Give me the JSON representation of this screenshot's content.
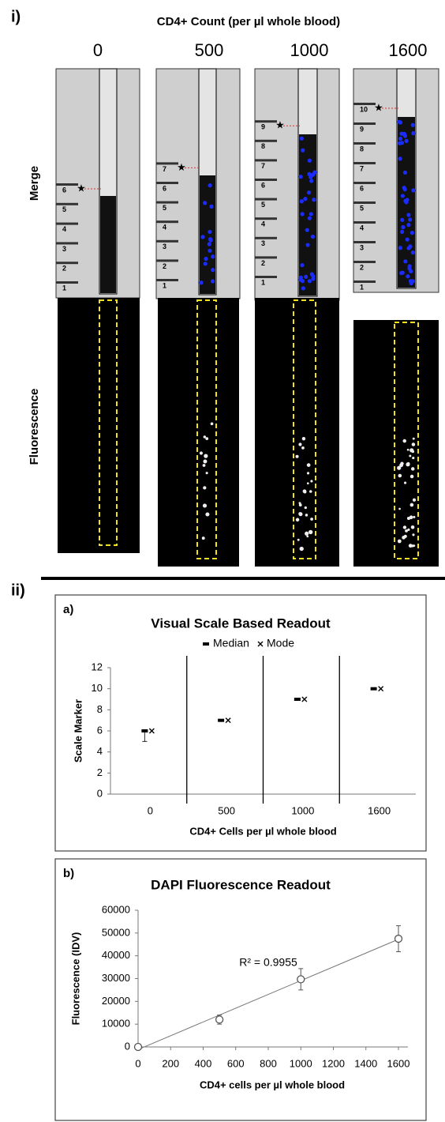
{
  "figure": {
    "panel_label": "i)",
    "title": "CD4+ Count (per µl whole blood)",
    "columns": [
      "0",
      "500",
      "1000",
      "1600"
    ],
    "rows": [
      "Merge",
      "Fluorescence"
    ],
    "scale_labels": [
      [
        "1",
        "2",
        "3",
        "4",
        "5",
        "6"
      ],
      [
        "1",
        "2",
        "3",
        "4",
        "5",
        "6",
        "7"
      ],
      [
        "1",
        "2",
        "3",
        "4",
        "5",
        "6",
        "7",
        "8",
        "9"
      ],
      [
        "1",
        "2",
        "3",
        "4",
        "5",
        "6",
        "7",
        "8",
        "9",
        "10"
      ]
    ]
  },
  "section_label": "ii)",
  "chart_data": [
    {
      "type": "dot",
      "panel_label": "a)",
      "title": "Visual Scale Based Readout",
      "categories": [
        "0",
        "500",
        "1000",
        "1600"
      ],
      "series": [
        {
          "name": "Median",
          "color": "#000000",
          "values": [
            6,
            7,
            9,
            10
          ],
          "error_minus": [
            1,
            0,
            0,
            0
          ]
        },
        {
          "name": "Mode",
          "color": "#000000",
          "values": [
            6,
            7,
            9,
            10
          ]
        }
      ],
      "ylabel": "Scale Marker",
      "xlabel": "CD4+ Cells per µl whole blood",
      "ylim": [
        0,
        12
      ],
      "yticks": [
        0,
        2,
        4,
        6,
        8,
        10,
        12
      ],
      "legend": "top"
    },
    {
      "type": "scatter",
      "panel_label": "b)",
      "title": "DAPI Fluorescence Readout",
      "x": [
        0,
        500,
        1000,
        1600
      ],
      "values": [
        0,
        12000,
        29700,
        47500
      ],
      "errors": [
        0,
        2000,
        4700,
        5700
      ],
      "color": "#555555",
      "trendline": true,
      "annotation": "R² = 0.9955",
      "ylabel": "Fluorescence (IDV)",
      "xlabel": "CD4+ cells per µl whole blood",
      "xlim": [
        0,
        1600
      ],
      "xticks": [
        0,
        200,
        400,
        600,
        800,
        1000,
        1200,
        1400,
        1600
      ],
      "ylim": [
        0,
        60000
      ],
      "yticks": [
        0,
        10000,
        20000,
        30000,
        40000,
        50000,
        60000
      ]
    }
  ]
}
